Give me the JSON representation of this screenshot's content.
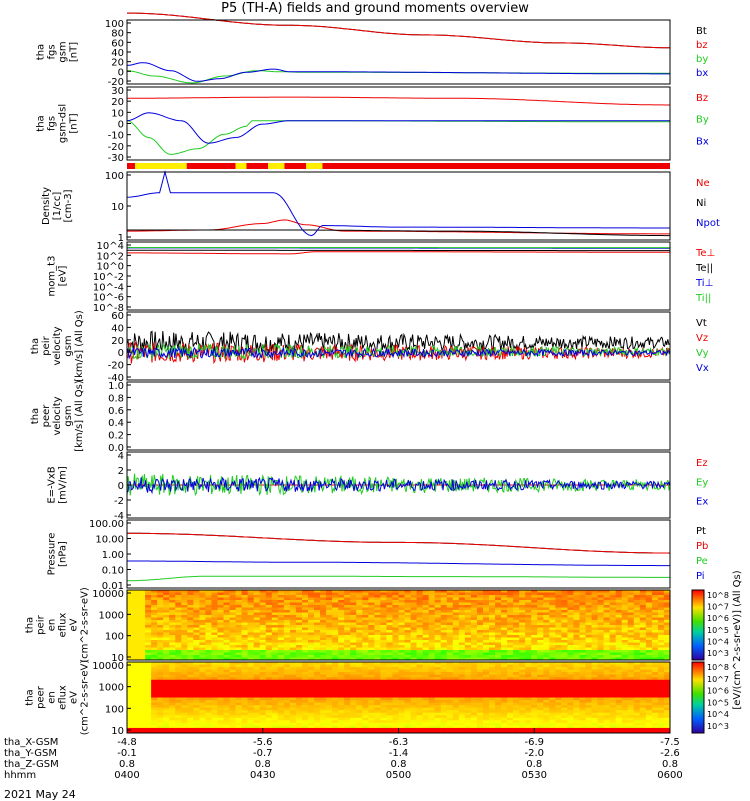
{
  "title": "P5 (TH-A) fields and ground moments overview",
  "date_label": "2021 May 24",
  "colors": {
    "black": "#000000",
    "red": "#ee0000",
    "green": "#22cc22",
    "blue": "#0000dd",
    "yellow": "#ffee00",
    "axis": "#000000"
  },
  "time_axis": {
    "label_rows": [
      "tha_X-GSM",
      "tha_Y-GSM",
      "tha_Z-GSM",
      "hhmm"
    ],
    "ticks": [
      {
        "t": "04:00",
        "vals": [
          "-4.8",
          "-0.1",
          "0.8",
          "0400"
        ]
      },
      {
        "t": "04:30",
        "vals": [
          "-5.6",
          "-0.7",
          "0.8",
          "0430"
        ]
      },
      {
        "t": "05:00",
        "vals": [
          "-6.3",
          "-1.4",
          "0.8",
          "0500"
        ]
      },
      {
        "t": "05:30",
        "vals": [
          "-6.9",
          "-2.0",
          "0.8",
          "0530"
        ]
      },
      {
        "t": "06:00",
        "vals": [
          "-7.5",
          "-2.6",
          "0.8",
          "0600"
        ]
      }
    ],
    "range": [
      "04:00",
      "06:00"
    ]
  },
  "colorbar_label": "[eV/(cm^2-s-sr-eV)] (All Qs)",
  "chart_data": [
    {
      "type": "line",
      "id": "fgs_gsm",
      "ylabel_lines": [
        "tha",
        "fgs",
        "gsm",
        "[nT]"
      ],
      "yticks": [
        "100",
        "80",
        "60",
        "40",
        "20",
        "0",
        "-20"
      ],
      "ylim": [
        -20,
        100
      ],
      "series": [
        {
          "name": "Bt",
          "color": "black",
          "points": [
            [
              0,
              113
            ],
            [
              0.3,
              90
            ],
            [
              0.55,
              72
            ],
            [
              0.8,
              57
            ],
            [
              1.0,
              48
            ]
          ]
        },
        {
          "name": "bz",
          "color": "red",
          "points": [
            [
              0,
              113
            ],
            [
              0.3,
              90
            ],
            [
              0.55,
              72
            ],
            [
              0.8,
              57
            ],
            [
              1.0,
              48
            ]
          ]
        },
        {
          "name": "by",
          "color": "green",
          "points": [
            [
              0,
              5
            ],
            [
              0.05,
              -5
            ],
            [
              0.12,
              -18
            ],
            [
              0.18,
              -5
            ],
            [
              0.24,
              5
            ],
            [
              0.28,
              3
            ],
            [
              0.33,
              2
            ],
            [
              1.0,
              0
            ]
          ]
        },
        {
          "name": "bx",
          "color": "blue",
          "points": [
            [
              0,
              15
            ],
            [
              0.03,
              20
            ],
            [
              0.08,
              5
            ],
            [
              0.13,
              -15
            ],
            [
              0.17,
              -10
            ],
            [
              0.22,
              2
            ],
            [
              0.27,
              8
            ],
            [
              0.3,
              3
            ],
            [
              1.0,
              -1
            ]
          ]
        }
      ]
    },
    {
      "type": "line",
      "id": "fgs_gse_dsl",
      "ylabel_lines": [
        "tha",
        "fgs",
        "gsm-dsl",
        "[nT]"
      ],
      "yticks": [
        "30",
        "20",
        "10",
        "0",
        "-10",
        "-20",
        "-30"
      ],
      "ylim": [
        -35,
        30
      ],
      "series": [
        {
          "name": "Bz",
          "color": "red",
          "points": [
            [
              0,
              20
            ],
            [
              0.3,
              21
            ],
            [
              0.6,
              20
            ],
            [
              1.0,
              14
            ]
          ]
        },
        {
          "name": "By",
          "color": "green",
          "points": [
            [
              0,
              0
            ],
            [
              0.04,
              -15
            ],
            [
              0.08,
              -30
            ],
            [
              0.13,
              -25
            ],
            [
              0.18,
              -12
            ],
            [
              0.22,
              -5
            ],
            [
              0.23,
              0
            ],
            [
              1.0,
              -1
            ]
          ]
        },
        {
          "name": "Bx",
          "color": "blue",
          "points": [
            [
              0,
              0
            ],
            [
              0.04,
              7
            ],
            [
              0.1,
              0
            ],
            [
              0.15,
              -20
            ],
            [
              0.2,
              -15
            ],
            [
              0.25,
              -3
            ],
            [
              0.3,
              0
            ],
            [
              1.0,
              0
            ]
          ]
        }
      ]
    },
    {
      "type": "flag",
      "id": "mode_bar",
      "segments": [
        [
          0,
          0.015,
          "red"
        ],
        [
          0.015,
          0.11,
          "yellow"
        ],
        [
          0.11,
          0.2,
          "red"
        ],
        [
          0.2,
          0.22,
          "yellow"
        ],
        [
          0.22,
          0.26,
          "red"
        ],
        [
          0.26,
          0.29,
          "yellow"
        ],
        [
          0.29,
          0.33,
          "red"
        ],
        [
          0.33,
          0.36,
          "yellow"
        ],
        [
          0.36,
          1.0,
          "red"
        ]
      ]
    },
    {
      "type": "line",
      "id": "density",
      "log": true,
      "ylabel_lines": [
        "Density",
        "[1/cc]",
        "[cm-3]"
      ],
      "yticks": [
        "100",
        "10",
        "1"
      ],
      "ylim": [
        0.4,
        200
      ],
      "series": [
        {
          "name": "Ne",
          "color": "red",
          "points": [
            [
              0,
              0.9
            ],
            [
              0.15,
              1.0
            ],
            [
              0.25,
              1.8
            ],
            [
              0.29,
              2.5
            ],
            [
              0.33,
              1.6
            ],
            [
              0.4,
              0.9
            ],
            [
              1.0,
              0.7
            ]
          ]
        },
        {
          "name": "Ni",
          "color": "black",
          "points": [
            [
              0,
              1.0
            ],
            [
              0.3,
              1.0
            ],
            [
              0.6,
              0.9
            ],
            [
              1.0,
              0.6
            ]
          ]
        },
        {
          "name": "Npot",
          "color": "blue",
          "points": [
            [
              0,
              20
            ],
            [
              0.06,
              30
            ],
            [
              0.07,
              200
            ],
            [
              0.08,
              30
            ],
            [
              0.2,
              30
            ],
            [
              0.27,
              30
            ],
            [
              0.34,
              0.6
            ],
            [
              0.36,
              1.5
            ],
            [
              0.5,
              1.3
            ],
            [
              1.0,
              1.2
            ]
          ]
        }
      ]
    },
    {
      "type": "line",
      "id": "temperature",
      "log": true,
      "ylabel_lines": [
        "mom_t3",
        "[eV]"
      ],
      "yticks": [
        "10^4",
        "10^2",
        "10^0",
        "10^-2",
        "10^-4",
        "10^-6",
        "10^-8"
      ],
      "ylim": [
        1e-08,
        30000.0
      ],
      "series": [
        {
          "name": "Te⊥",
          "color": "red",
          "points": [
            [
              0,
              300
            ],
            [
              0.3,
              200
            ],
            [
              0.35,
              500
            ],
            [
              1.0,
              400
            ]
          ]
        },
        {
          "name": "Te||",
          "color": "black",
          "points": [
            [
              0,
              900
            ],
            [
              1.0,
              800
            ]
          ]
        },
        {
          "name": "Ti⊥",
          "color": "blue",
          "points": [
            [
              0,
              2500
            ],
            [
              1.0,
              2200
            ]
          ]
        },
        {
          "name": "Ti||",
          "color": "green",
          "points": [
            [
              0,
              3000
            ],
            [
              1.0,
              2800
            ]
          ]
        }
      ]
    },
    {
      "type": "line",
      "id": "peir_velocity",
      "ylabel_lines": [
        "tha",
        "peir",
        "velocity",
        "gsm",
        "[km/s] (All Qs)"
      ],
      "yticks": [
        "60",
        "40",
        "20",
        "0",
        "-20",
        "-40"
      ],
      "ylim": [
        -40,
        60
      ],
      "series": [
        {
          "name": "Vt",
          "color": "black",
          "noise": [
            15,
            18
          ]
        },
        {
          "name": "Vz",
          "color": "red",
          "noise": [
            0,
            16
          ]
        },
        {
          "name": "Vy",
          "color": "green",
          "noise": [
            2,
            12
          ]
        },
        {
          "name": "Vx",
          "color": "blue",
          "noise": [
            0,
            8
          ]
        }
      ]
    },
    {
      "type": "line",
      "id": "peer_velocity",
      "ylabel_lines": [
        "tha",
        "peer",
        "velocity",
        "gsm",
        "[km/s] (All Qs)"
      ],
      "yticks": [
        "1.0",
        "0.8",
        "0.6",
        "0.4",
        "0.2",
        "0.0"
      ],
      "ylim": [
        0,
        1
      ],
      "series": [
        {
          "name": "Vt",
          "color": "black"
        },
        {
          "name": "Vz",
          "color": "red"
        },
        {
          "name": "Vy",
          "color": "green"
        },
        {
          "name": "Vx",
          "color": "blue"
        }
      ]
    },
    {
      "type": "line",
      "id": "efield",
      "ylabel_lines": [
        "E=-VxB",
        "[mV/m]"
      ],
      "yticks": [
        "4",
        "2",
        "0",
        "-2",
        "-4"
      ],
      "ylim": [
        -4,
        4
      ],
      "series": [
        {
          "name": "Ez",
          "color": "red",
          "points": [
            [
              0,
              0
            ],
            [
              1.0,
              0
            ]
          ]
        },
        {
          "name": "Ey",
          "color": "green",
          "noise": [
            0,
            1.4
          ]
        },
        {
          "name": "Ex",
          "color": "blue",
          "noise": [
            0,
            1.0
          ]
        }
      ]
    },
    {
      "type": "line",
      "id": "pressure",
      "log": true,
      "ylabel_lines": [
        "Pressure",
        "[nPa]"
      ],
      "yticks": [
        "100.00",
        "10.00",
        "1.00",
        "0.10",
        "0.01"
      ],
      "ylim": [
        0.005,
        150
      ],
      "series": [
        {
          "name": "Pt",
          "color": "black",
          "points": [
            [
              0,
              20
            ],
            [
              0.5,
              5
            ],
            [
              1.0,
              1.0
            ]
          ]
        },
        {
          "name": "Pb",
          "color": "red",
          "points": [
            [
              0,
              20
            ],
            [
              0.5,
              5
            ],
            [
              1.0,
              1.0
            ]
          ]
        },
        {
          "name": "Pe",
          "color": "green",
          "points": [
            [
              0,
              0.015
            ],
            [
              0.15,
              0.03
            ],
            [
              0.3,
              0.03
            ],
            [
              0.6,
              0.028
            ],
            [
              1.0,
              0.025
            ]
          ]
        },
        {
          "name": "Pi",
          "color": "blue",
          "points": [
            [
              0,
              0.3
            ],
            [
              0.3,
              0.25
            ],
            [
              1.0,
              0.15
            ]
          ]
        }
      ]
    },
    {
      "type": "heatmap",
      "id": "peir_eflux",
      "log": true,
      "ylabel_lines": [
        "tha",
        "peir",
        "en",
        "eflux",
        "eV",
        "(cm^2-s-sr-eV)"
      ],
      "yticks": [
        "10000",
        "1000",
        "100",
        "10"
      ],
      "ylim": [
        5,
        25000
      ],
      "cbar_ticks": [
        "10^8",
        "10^7",
        "10^6",
        "10^5",
        "10^4",
        "10^3"
      ]
    },
    {
      "type": "heatmap",
      "id": "peer_eflux",
      "log": true,
      "ylabel_lines": [
        "tha",
        "peer",
        "en",
        "eflux",
        "eV",
        "(cm^2-s-sr-eV)"
      ],
      "yticks": [
        "10000",
        "1000",
        "100",
        "10"
      ],
      "ylim": [
        5,
        25000
      ],
      "cbar_ticks": [
        "10^8",
        "10^7",
        "10^6",
        "10^5",
        "10^4",
        "10^3"
      ]
    }
  ]
}
